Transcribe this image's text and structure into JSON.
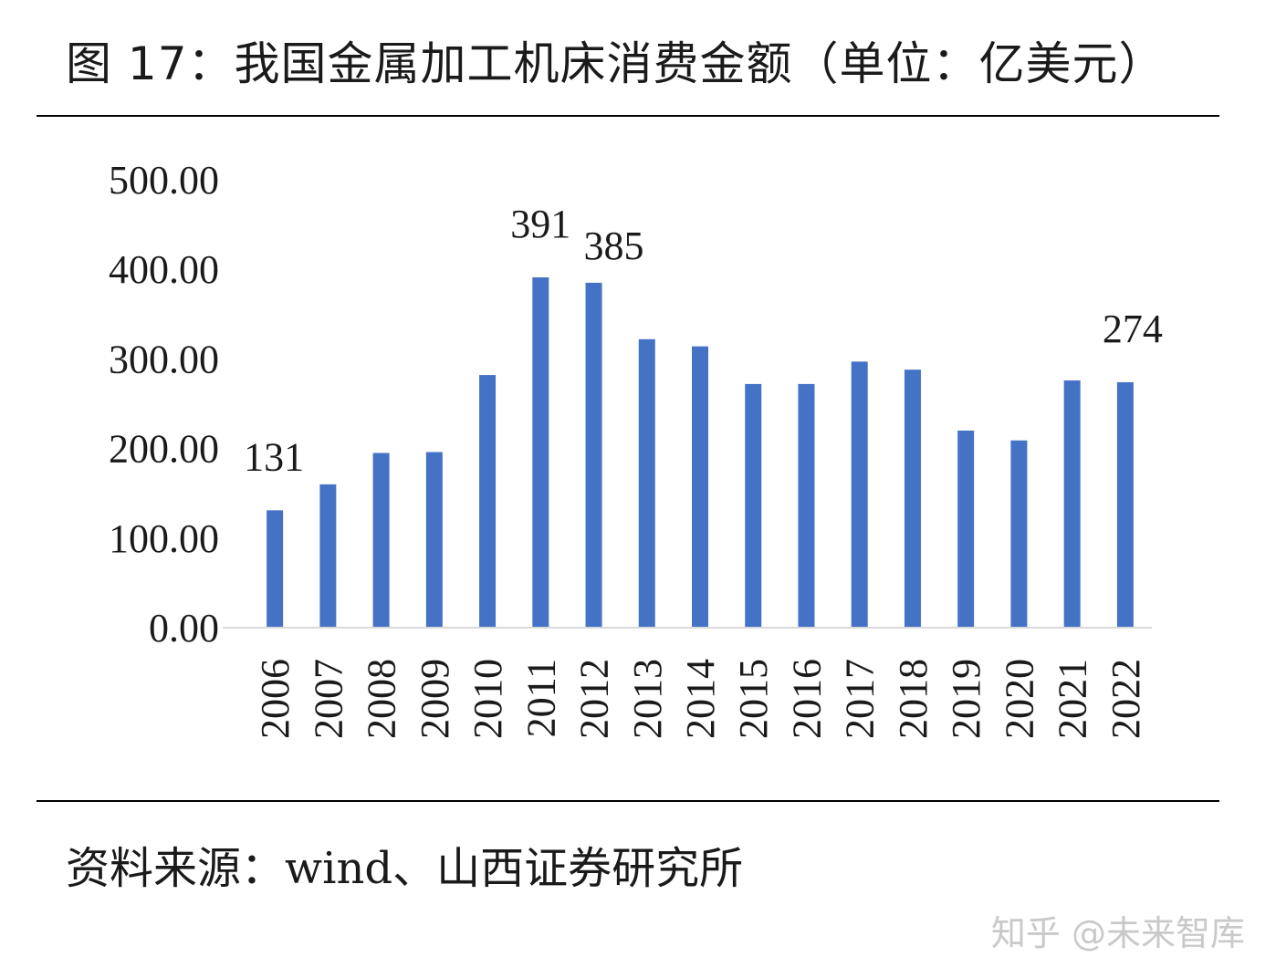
{
  "header": {
    "title": "图 17：我国金属加工机床消费金额（单位：亿美元）"
  },
  "footer": {
    "source_label": "资料来源：",
    "source_text": "wind、山西证券研究所",
    "watermark": "知乎 @未来智库"
  },
  "chart_data": {
    "type": "bar",
    "title": "图 17：我国金属加工机床消费金额（单位：亿美元）",
    "xlabel": "",
    "ylabel": "",
    "ylim": [
      0,
      500
    ],
    "y_ticks": [
      "0.00",
      "100.00",
      "200.00",
      "300.00",
      "400.00",
      "500.00"
    ],
    "grid": false,
    "legend": "none",
    "bar_color": "#4472c4",
    "categories": [
      "2006",
      "2007",
      "2008",
      "2009",
      "2010",
      "2011",
      "2012",
      "2013",
      "2014",
      "2015",
      "2016",
      "2017",
      "2018",
      "2019",
      "2020",
      "2021",
      "2022"
    ],
    "values": [
      131,
      160,
      195,
      196,
      282,
      391,
      385,
      322,
      314,
      272,
      272,
      297,
      288,
      220,
      209,
      276,
      274
    ],
    "data_labels": [
      {
        "category": "2006",
        "text": "131"
      },
      {
        "category": "2011",
        "text": "391"
      },
      {
        "category": "2012",
        "text": "385"
      },
      {
        "category": "2022",
        "text": "274"
      }
    ]
  }
}
